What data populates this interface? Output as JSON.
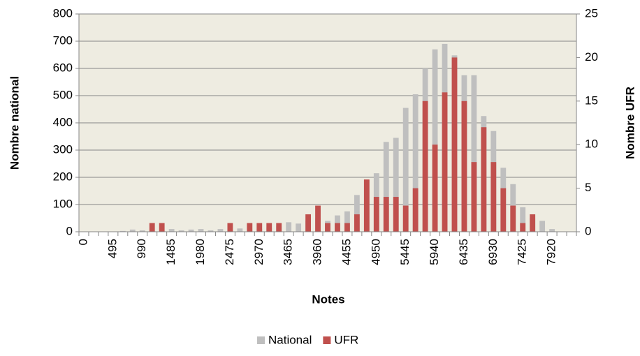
{
  "chart_data": {
    "type": "bar",
    "categories": [
      "0",
      null,
      null,
      "495",
      null,
      null,
      "990",
      null,
      null,
      "1485",
      null,
      null,
      "1980",
      null,
      null,
      "2475",
      null,
      null,
      "2970",
      null,
      null,
      "3465",
      null,
      null,
      "3960",
      null,
      null,
      "4455",
      null,
      null,
      "4950",
      null,
      null,
      "5445",
      null,
      null,
      "5940",
      null,
      null,
      "6435",
      null,
      null,
      "6930",
      null,
      null,
      "7425",
      null,
      null,
      "7920",
      null,
      null
    ],
    "series": [
      {
        "name": "National",
        "color": "#bfbfbf",
        "values": [
          0,
          0,
          0,
          0,
          3,
          8,
          5,
          5,
          5,
          10,
          5,
          8,
          10,
          5,
          10,
          5,
          12,
          8,
          10,
          15,
          20,
          35,
          30,
          40,
          50,
          40,
          60,
          75,
          135,
          190,
          215,
          330,
          345,
          455,
          505,
          600,
          670,
          690,
          648,
          575,
          575,
          425,
          370,
          235,
          175,
          90,
          50,
          40,
          10,
          0,
          0
        ]
      },
      {
        "name": "UFR",
        "color": "#c0504d",
        "axis": "y2",
        "values": [
          0,
          0,
          0,
          0,
          0,
          0,
          0,
          1,
          1,
          0,
          0,
          0,
          0,
          0,
          0,
          1,
          0,
          1,
          1,
          1,
          1,
          0,
          0,
          2,
          3,
          1,
          1,
          1,
          2,
          6,
          4,
          4,
          4,
          3,
          5,
          15,
          10,
          16,
          20,
          15,
          8,
          12,
          8,
          5,
          3,
          1,
          2,
          0,
          0,
          0,
          0
        ]
      }
    ],
    "xlabel": "Notes",
    "ylabel": "Nombre national",
    "y2label": "Nombre UFR",
    "ylim": [
      0,
      800
    ],
    "yticks": [
      0,
      100,
      200,
      300,
      400,
      500,
      600,
      700,
      800
    ],
    "y2lim": [
      0,
      25
    ],
    "y2ticks": [
      0,
      5,
      10,
      15,
      20,
      25
    ],
    "grid": true,
    "legend": "bottom"
  }
}
